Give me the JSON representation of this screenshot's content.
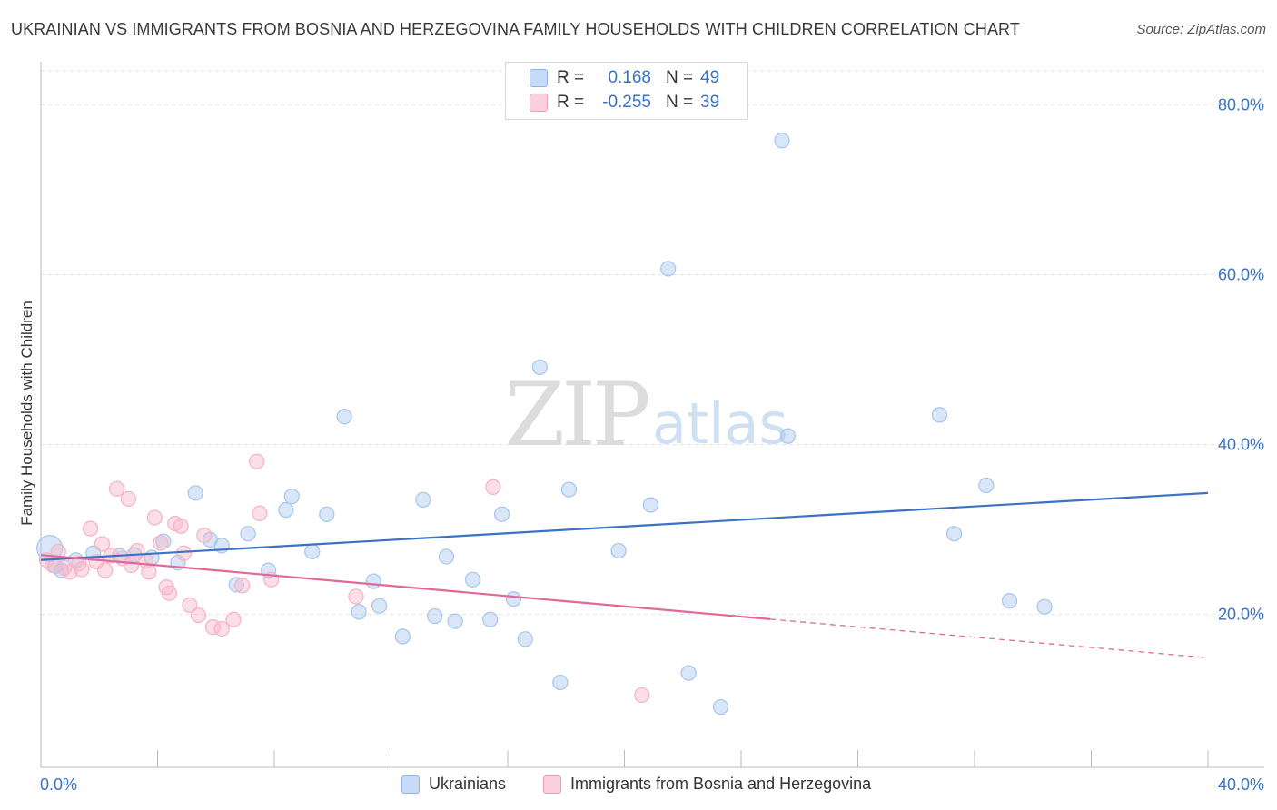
{
  "header": {
    "title": "UKRAINIAN VS IMMIGRANTS FROM BOSNIA AND HERZEGOVINA FAMILY HOUSEHOLDS WITH CHILDREN CORRELATION CHART",
    "source": "Source: ZipAtlas.com"
  },
  "watermark": {
    "zip": "ZIP",
    "atlas": "atlas"
  },
  "stats": [
    {
      "r_label": "R =",
      "r_value": "0.168",
      "n_label": "N =",
      "n_value": "49",
      "color": "#aac8ef"
    },
    {
      "r_label": "R =",
      "r_value": "-0.255",
      "n_label": "N =",
      "n_value": "39",
      "color": "#f6b5c8"
    }
  ],
  "legend": [
    {
      "label": "Ukrainians",
      "color": "#aac8ef"
    },
    {
      "label": "Immigrants from Bosnia and Herzegovina",
      "color": "#f6b5c8"
    }
  ],
  "chart_data": {
    "type": "scatter",
    "ylabel": "Family Households with Children",
    "xlim": [
      0,
      40
    ],
    "ylim": [
      2,
      84
    ],
    "x_tick_labels": [
      {
        "value": 0,
        "label": "0.0%"
      },
      {
        "value": 40,
        "label": "40.0%"
      }
    ],
    "y_tick_labels": [
      {
        "value": 20,
        "label": "20.0%"
      },
      {
        "value": 40,
        "label": "40.0%"
      },
      {
        "value": 60,
        "label": "60.0%"
      },
      {
        "value": 80,
        "label": "80.0%"
      }
    ],
    "grid": true,
    "series": [
      {
        "name": "Ukrainians",
        "color": "#3b73c4",
        "fill": "#aac8ef",
        "trend": {
          "x0": 0,
          "y0": 26.4,
          "x1": 40,
          "y1": 34.3,
          "dashed_from": null
        },
        "points": [
          [
            0.3,
            27.8
          ],
          [
            0.7,
            25.2
          ],
          [
            1.2,
            26.4
          ],
          [
            1.8,
            27.2
          ],
          [
            2.7,
            26.9
          ],
          [
            3.2,
            27.0
          ],
          [
            3.8,
            26.7
          ],
          [
            4.2,
            28.6
          ],
          [
            4.7,
            26.1
          ],
          [
            5.3,
            34.3
          ],
          [
            5.8,
            28.8
          ],
          [
            6.2,
            28.1
          ],
          [
            6.7,
            23.5
          ],
          [
            7.1,
            29.5
          ],
          [
            7.8,
            25.2
          ],
          [
            8.4,
            32.3
          ],
          [
            8.6,
            33.9
          ],
          [
            9.3,
            27.4
          ],
          [
            9.8,
            31.8
          ],
          [
            10.4,
            43.3
          ],
          [
            10.9,
            20.3
          ],
          [
            11.4,
            23.9
          ],
          [
            11.6,
            21.0
          ],
          [
            12.4,
            17.4
          ],
          [
            13.1,
            33.5
          ],
          [
            13.5,
            19.8
          ],
          [
            13.9,
            26.8
          ],
          [
            14.2,
            19.2
          ],
          [
            14.8,
            24.1
          ],
          [
            15.4,
            19.4
          ],
          [
            15.8,
            31.8
          ],
          [
            16.2,
            21.8
          ],
          [
            16.6,
            17.1
          ],
          [
            17.1,
            49.1
          ],
          [
            17.8,
            12.0
          ],
          [
            18.1,
            34.7
          ],
          [
            19.8,
            27.5
          ],
          [
            20.9,
            32.9
          ],
          [
            21.5,
            60.7
          ],
          [
            22.2,
            13.1
          ],
          [
            23.3,
            9.1
          ],
          [
            25.4,
            75.8
          ],
          [
            25.6,
            41.0
          ],
          [
            30.8,
            43.5
          ],
          [
            31.3,
            29.5
          ],
          [
            32.4,
            35.2
          ],
          [
            33.2,
            21.6
          ],
          [
            34.4,
            20.9
          ],
          [
            0.5,
            25.7
          ]
        ]
      },
      {
        "name": "Immigrants from Bosnia and Herzegovina",
        "color": "#e0689a",
        "fill": "#f6b5c8",
        "trend": {
          "x0": 0,
          "y0": 27.0,
          "x1": 40,
          "y1": 14.9,
          "dashed_from": 25.0
        },
        "points": [
          [
            0.2,
            26.4
          ],
          [
            0.4,
            25.8
          ],
          [
            0.6,
            27.4
          ],
          [
            0.8,
            25.5
          ],
          [
            1.0,
            25.0
          ],
          [
            1.3,
            26.0
          ],
          [
            1.4,
            25.3
          ],
          [
            1.7,
            30.1
          ],
          [
            1.9,
            26.2
          ],
          [
            2.1,
            28.3
          ],
          [
            2.2,
            25.2
          ],
          [
            2.4,
            26.9
          ],
          [
            2.6,
            34.8
          ],
          [
            2.8,
            26.6
          ],
          [
            3.0,
            33.6
          ],
          [
            3.1,
            25.8
          ],
          [
            3.3,
            27.5
          ],
          [
            3.6,
            26.3
          ],
          [
            3.7,
            25.0
          ],
          [
            3.9,
            31.4
          ],
          [
            4.1,
            28.4
          ],
          [
            4.3,
            23.2
          ],
          [
            4.4,
            22.5
          ],
          [
            4.6,
            30.7
          ],
          [
            4.8,
            30.4
          ],
          [
            4.9,
            27.2
          ],
          [
            5.1,
            21.1
          ],
          [
            5.4,
            19.9
          ],
          [
            5.6,
            29.3
          ],
          [
            5.9,
            18.5
          ],
          [
            6.2,
            18.3
          ],
          [
            6.6,
            19.4
          ],
          [
            6.9,
            23.4
          ],
          [
            7.4,
            38.0
          ],
          [
            7.5,
            31.9
          ],
          [
            7.9,
            24.1
          ],
          [
            10.8,
            22.1
          ],
          [
            15.5,
            35.0
          ],
          [
            20.6,
            10.5
          ]
        ]
      }
    ]
  }
}
